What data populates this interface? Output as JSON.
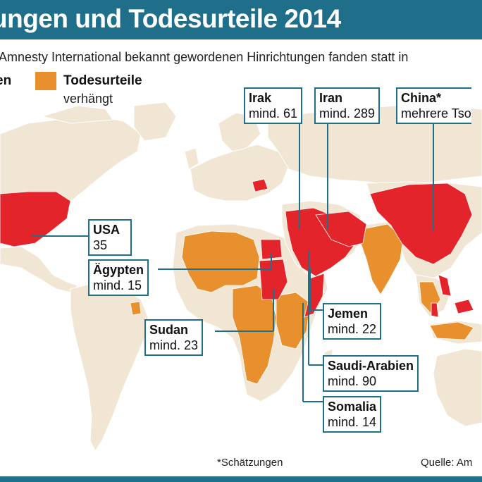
{
  "header": {
    "title": "ungen und Todesurteile 2014",
    "subtitle": "Amnesty International bekannt gewordenen Hinrichtungen fanden statt in"
  },
  "legend": {
    "cut_label": "en",
    "sentences_label": "Todesurteile",
    "sentences_sub": "verhängt",
    "sentences_color": "#e8902e",
    "executions_color": "#e3242b"
  },
  "map_colors": {
    "land": "#f1e6d3",
    "ocean": "#ffffff",
    "executions": "#e3242b",
    "sentences": "#e8902e"
  },
  "callouts": [
    {
      "id": "irak",
      "name": "Irak",
      "value": "mind. 61"
    },
    {
      "id": "iran",
      "name": "Iran",
      "value": "mind. 289"
    },
    {
      "id": "china",
      "name": "China*",
      "value": "mehrere Tso"
    },
    {
      "id": "usa",
      "name": "USA",
      "value": "35"
    },
    {
      "id": "aegypten",
      "name": "Ägypten",
      "value": "mind. 15"
    },
    {
      "id": "sudan",
      "name": "Sudan",
      "value": "mind. 23"
    },
    {
      "id": "jemen",
      "name": "Jemen",
      "value": "mind. 22"
    },
    {
      "id": "saudi",
      "name": "Saudi-Arabien",
      "value": "mind. 90"
    },
    {
      "id": "somalia",
      "name": "Somalia",
      "value": "mind. 14"
    }
  ],
  "footer": {
    "footnote": "*Schätzungen",
    "source": "Quelle: Am"
  }
}
